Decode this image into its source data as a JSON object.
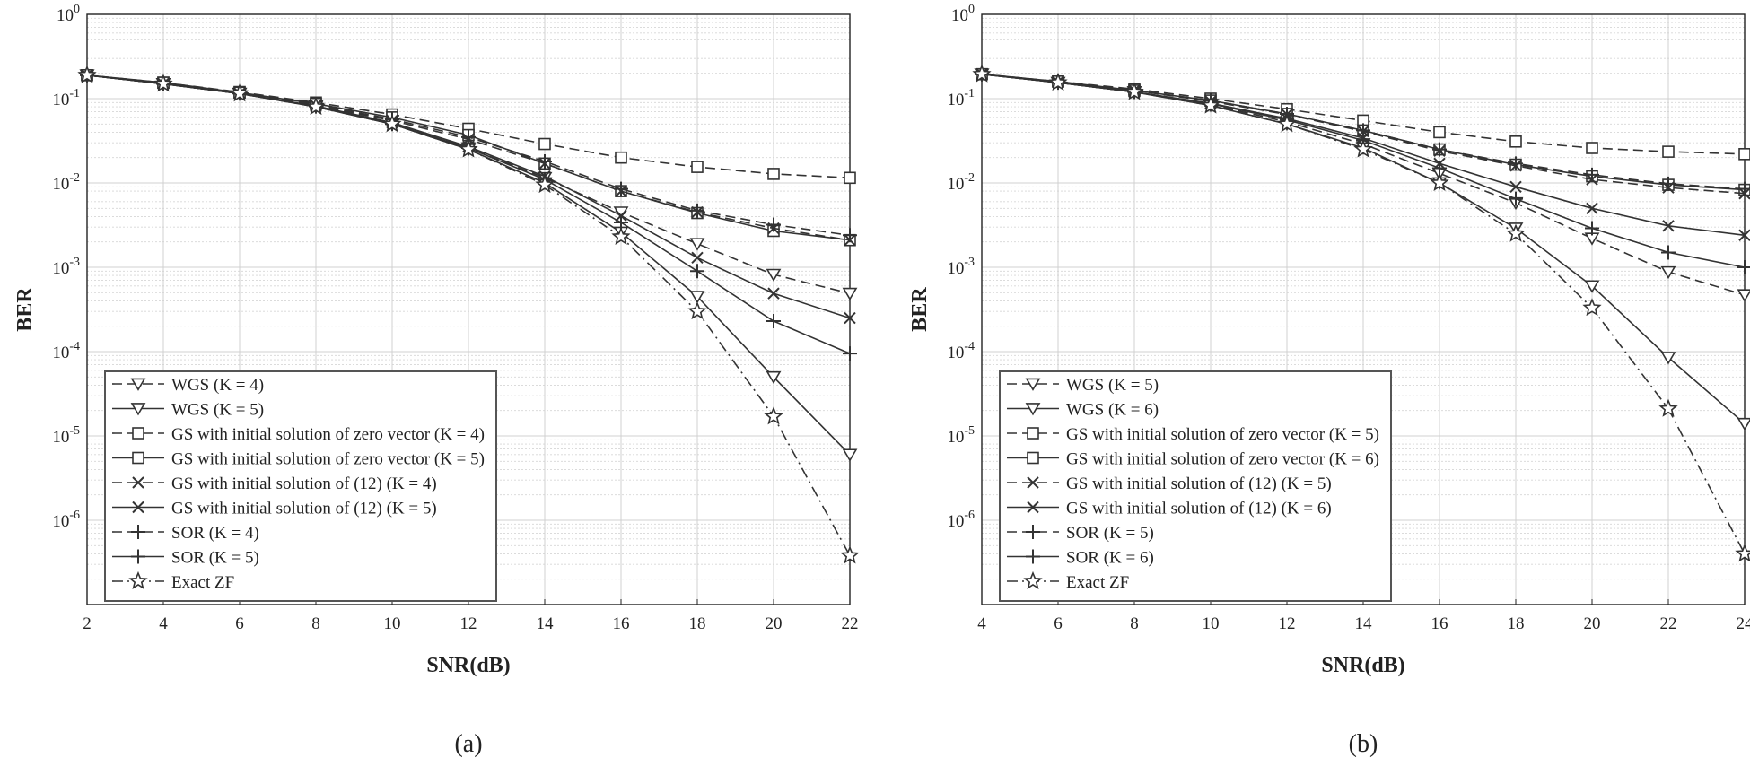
{
  "chart_data": [
    {
      "type": "line",
      "panel": "(a)",
      "xlabel": "SNR(dB)",
      "ylabel": "BER",
      "yscale": "log",
      "xlim": [
        2,
        22
      ],
      "ylim": [
        1e-07,
        1
      ],
      "x_ticks": [
        "2",
        "4",
        "6",
        "8",
        "10",
        "12",
        "14",
        "16",
        "18",
        "20",
        "22"
      ],
      "y_ticks": [
        {
          "base": "10",
          "exp": "0",
          "value": 1
        },
        {
          "base": "10",
          "exp": "-1",
          "value": 0.1
        },
        {
          "base": "10",
          "exp": "-2",
          "value": 0.01
        },
        {
          "base": "10",
          "exp": "-3",
          "value": 0.001
        },
        {
          "base": "10",
          "exp": "-4",
          "value": 0.0001
        },
        {
          "base": "10",
          "exp": "-5",
          "value": 1e-05
        },
        {
          "base": "10",
          "exp": "-6",
          "value": 1e-06
        }
      ],
      "grid": true,
      "legend_position": "lower-left",
      "x": [
        2,
        4,
        6,
        8,
        10,
        12,
        14,
        16,
        18,
        20,
        22
      ],
      "series": [
        {
          "name": "WGS (K = 4)",
          "style": "dashed",
          "marker": "triangle-down",
          "values": [
            0.19,
            0.15,
            0.115,
            0.082,
            0.05,
            0.026,
            0.0115,
            0.0045,
            0.0019,
            0.00082,
            0.00049
          ]
        },
        {
          "name": "WGS (K = 5)",
          "style": "solid",
          "marker": "triangle-down",
          "values": [
            0.19,
            0.15,
            0.115,
            0.08,
            0.05,
            0.025,
            0.01,
            0.0026,
            0.00045,
            5e-05,
            6e-06
          ]
        },
        {
          "name": "GS with initial solution of zero vector (K = 4)",
          "style": "dashed",
          "marker": "square",
          "values": [
            0.19,
            0.155,
            0.12,
            0.09,
            0.065,
            0.044,
            0.029,
            0.02,
            0.0155,
            0.0128,
            0.0115
          ]
        },
        {
          "name": "GS with initial solution of zero vector (K = 5)",
          "style": "solid",
          "marker": "square",
          "values": [
            0.19,
            0.155,
            0.118,
            0.087,
            0.06,
            0.037,
            0.017,
            0.008,
            0.0044,
            0.0027,
            0.0021
          ]
        },
        {
          "name": "GS with initial solution of (12) (K = 4)",
          "style": "dashed",
          "marker": "x",
          "values": [
            0.19,
            0.15,
            0.115,
            0.083,
            0.055,
            0.033,
            0.017,
            0.008,
            0.0045,
            0.0029,
            0.0021
          ]
        },
        {
          "name": "GS with initial solution of (12) (K = 5)",
          "style": "solid",
          "marker": "x",
          "values": [
            0.19,
            0.15,
            0.115,
            0.082,
            0.052,
            0.027,
            0.012,
            0.0041,
            0.0013,
            0.00049,
            0.00025
          ]
        },
        {
          "name": "SOR (K = 4)",
          "style": "dashed",
          "marker": "plus",
          "values": [
            0.19,
            0.15,
            0.116,
            0.085,
            0.057,
            0.035,
            0.018,
            0.0085,
            0.0047,
            0.0032,
            0.0024
          ]
        },
        {
          "name": "SOR (K = 5)",
          "style": "solid",
          "marker": "plus",
          "values": [
            0.19,
            0.15,
            0.115,
            0.081,
            0.05,
            0.026,
            0.011,
            0.0034,
            0.0009,
            0.00023,
            9.5e-05
          ]
        },
        {
          "name": "Exact ZF",
          "style": "dashdot",
          "marker": "star",
          "values": [
            0.19,
            0.15,
            0.115,
            0.08,
            0.05,
            0.025,
            0.0095,
            0.0023,
            0.0003,
            1.7e-05,
            3.8e-07
          ]
        }
      ]
    },
    {
      "type": "line",
      "panel": "(b)",
      "xlabel": "SNR(dB)",
      "ylabel": "BER",
      "yscale": "log",
      "xlim": [
        4,
        24
      ],
      "ylim": [
        1e-07,
        1
      ],
      "x_ticks": [
        "4",
        "6",
        "8",
        "10",
        "12",
        "14",
        "16",
        "18",
        "20",
        "22",
        "24"
      ],
      "y_ticks": [
        {
          "base": "10",
          "exp": "0",
          "value": 1
        },
        {
          "base": "10",
          "exp": "-1",
          "value": 0.1
        },
        {
          "base": "10",
          "exp": "-2",
          "value": 0.01
        },
        {
          "base": "10",
          "exp": "-3",
          "value": 0.001
        },
        {
          "base": "10",
          "exp": "-4",
          "value": 0.0001
        },
        {
          "base": "10",
          "exp": "-5",
          "value": 1e-05
        },
        {
          "base": "10",
          "exp": "-6",
          "value": 1e-06
        }
      ],
      "grid": true,
      "legend_position": "lower-left",
      "x": [
        4,
        6,
        8,
        10,
        12,
        14,
        16,
        18,
        20,
        22,
        24
      ],
      "series": [
        {
          "name": "WGS (K = 5)",
          "style": "dashed",
          "marker": "triangle-down",
          "values": [
            0.195,
            0.155,
            0.12,
            0.085,
            0.053,
            0.029,
            0.013,
            0.0058,
            0.0022,
            0.00088,
            0.00047
          ]
        },
        {
          "name": "WGS (K = 6)",
          "style": "solid",
          "marker": "triangle-down",
          "values": [
            0.195,
            0.155,
            0.12,
            0.083,
            0.05,
            0.026,
            0.01,
            0.0029,
            0.0006,
            8.5e-05,
            1.4e-05
          ]
        },
        {
          "name": "GS with initial solution of zero vector (K = 5)",
          "style": "dashed",
          "marker": "square",
          "values": [
            0.195,
            0.16,
            0.13,
            0.1,
            0.075,
            0.055,
            0.04,
            0.031,
            0.026,
            0.0235,
            0.022
          ]
        },
        {
          "name": "GS with initial solution of zero vector (K = 6)",
          "style": "solid",
          "marker": "square",
          "values": [
            0.195,
            0.16,
            0.125,
            0.095,
            0.066,
            0.042,
            0.025,
            0.0165,
            0.012,
            0.0095,
            0.0083
          ]
        },
        {
          "name": "GS with initial solution of (12) (K = 5)",
          "style": "dashed",
          "marker": "x",
          "values": [
            0.195,
            0.158,
            0.125,
            0.093,
            0.065,
            0.041,
            0.024,
            0.016,
            0.011,
            0.0088,
            0.0075
          ]
        },
        {
          "name": "GS with initial solution of (12) (K = 6)",
          "style": "solid",
          "marker": "x",
          "values": [
            0.195,
            0.155,
            0.12,
            0.088,
            0.058,
            0.034,
            0.017,
            0.009,
            0.005,
            0.0031,
            0.0024
          ]
        },
        {
          "name": "SOR (K = 5)",
          "style": "dashed",
          "marker": "plus",
          "values": [
            0.195,
            0.158,
            0.126,
            0.095,
            0.066,
            0.042,
            0.025,
            0.017,
            0.0125,
            0.0098,
            0.0085
          ]
        },
        {
          "name": "SOR (K = 6)",
          "style": "solid",
          "marker": "plus",
          "values": [
            0.195,
            0.155,
            0.12,
            0.087,
            0.056,
            0.032,
            0.015,
            0.0065,
            0.0029,
            0.0015,
            0.001
          ]
        },
        {
          "name": "Exact ZF",
          "style": "dashdot",
          "marker": "star",
          "values": [
            0.195,
            0.155,
            0.12,
            0.083,
            0.05,
            0.025,
            0.01,
            0.0025,
            0.00033,
            2.1e-05,
            4e-07
          ]
        }
      ]
    }
  ]
}
